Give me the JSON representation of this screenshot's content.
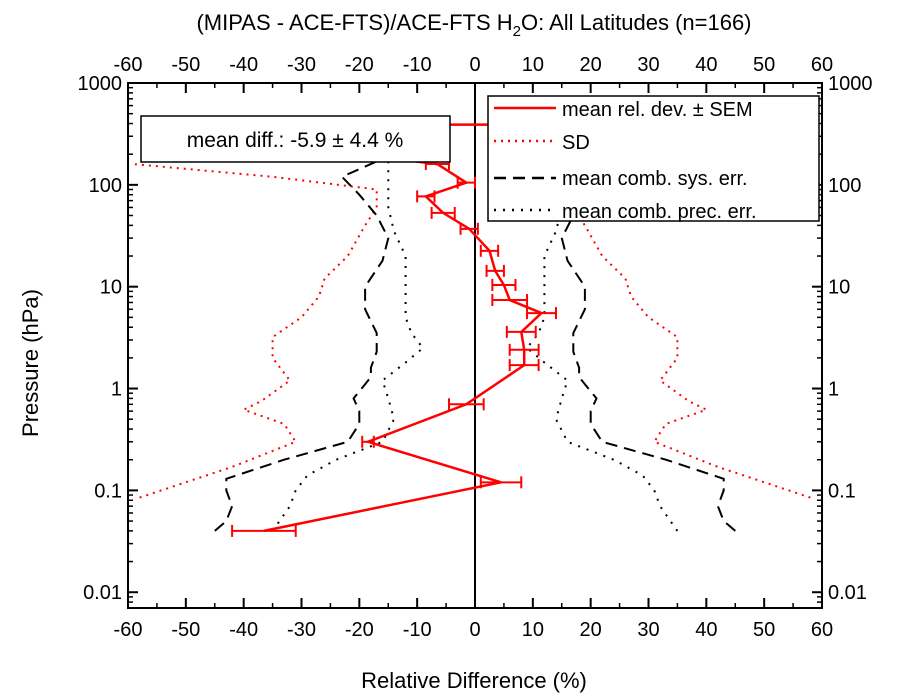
{
  "chart_data": {
    "type": "line",
    "title_main": "(MIPAS - ACE-FTS)/ACE-FTS H",
    "title_sub": "2",
    "title_tail": "O: All Latitudes (n=166)",
    "xlabel": "Relative Difference (%)",
    "ylabel": "Pressure (hPa)",
    "x_scale": "linear",
    "y_scale": "log",
    "y_reversed": true,
    "xlim": [
      -60,
      60
    ],
    "ylim": [
      1000,
      0.007
    ],
    "x_ticks": [
      -60,
      -50,
      -40,
      -30,
      -20,
      -10,
      0,
      10,
      20,
      30,
      40,
      50,
      60
    ],
    "y_ticks": [
      0.01,
      0.1,
      1,
      10,
      100,
      1000
    ],
    "y_tick_labels": [
      "0.01",
      "0.1",
      "1",
      "10",
      "100",
      "1000"
    ],
    "annotation": "mean diff.: -5.9 ± 4.4 %",
    "legend_position": "top-right",
    "legend": [
      {
        "label": "mean rel. dev. ± SEM",
        "style": "solid",
        "color": "#ff0000"
      },
      {
        "label": "SD",
        "style": "dotted",
        "color": "#ff0000"
      },
      {
        "label": "mean comb. sys. err.",
        "style": "dashed",
        "color": "#000000"
      },
      {
        "label": "mean comb. prec. err.",
        "style": "dotted",
        "color": "#000000"
      }
    ],
    "mean": {
      "pressure": [
        0.04,
        0.12,
        0.3,
        0.7,
        1.7,
        2.4,
        3.6,
        5.5,
        7.4,
        10.4,
        14.3,
        22.5,
        37,
        53,
        77,
        105,
        160,
        255,
        390
      ],
      "value": [
        -36.5,
        4.5,
        -18.5,
        -1.5,
        8.5,
        8.5,
        8.0,
        11.5,
        6.0,
        5.0,
        3.5,
        2.5,
        -1.0,
        -5.5,
        -8.5,
        -1.5,
        -6.5,
        -35.5,
        -47.5
      ],
      "sem": [
        5.5,
        3.5,
        1.0,
        3.0,
        2.5,
        2.5,
        2.5,
        2.5,
        3.0,
        2.0,
        1.5,
        1.5,
        1.5,
        2.0,
        1.5,
        1.5,
        2.0,
        5.0,
        10.0
      ],
      "extra": {
        "pressure": 390,
        "value": 16.0,
        "sem": 27.5
      }
    },
    "sd": {
      "pressure": [
        0.085,
        0.17,
        0.3,
        0.45,
        0.62,
        0.75,
        1.2,
        2.0,
        3.2,
        5.0,
        8.0,
        12.0,
        20.0,
        40.0,
        60.0,
        90.0,
        120.0,
        160.0
      ],
      "value": [
        58,
        42,
        31,
        33,
        40,
        37,
        32,
        35,
        35,
        30,
        27,
        26,
        22,
        19,
        17,
        17,
        35,
        59
      ]
    },
    "sys_err": {
      "pressure": [
        0.04,
        0.05,
        0.07,
        0.1,
        0.13,
        0.2,
        0.3,
        0.45,
        0.6,
        0.8,
        1.1,
        1.3,
        1.6,
        2.3,
        3.5,
        6.0,
        10.0,
        18.0,
        30.0,
        50.0,
        80.0,
        120.0,
        170.0,
        250.0,
        310.0
      ],
      "value": [
        45,
        43,
        42,
        43,
        43,
        33,
        22,
        20,
        20,
        21,
        19,
        18,
        18,
        17,
        17,
        19,
        19,
        16,
        15,
        17,
        20,
        23,
        17,
        9,
        8
      ]
    },
    "prec_err": {
      "pressure": [
        0.04,
        0.07,
        0.1,
        0.14,
        0.2,
        0.3,
        0.5,
        0.8,
        1.2,
        1.8,
        2.5,
        3.5,
        5.0,
        8.0,
        12.0,
        20.0,
        35.0,
        60.0,
        90.0,
        130.0,
        200.0,
        280.0,
        350.0,
        400.0
      ],
      "value": [
        35,
        32,
        31,
        29,
        24,
        16,
        14,
        15,
        16,
        12,
        9,
        11,
        12,
        12,
        12,
        12,
        14,
        15,
        15,
        15,
        15,
        13,
        12,
        10
      ]
    }
  }
}
